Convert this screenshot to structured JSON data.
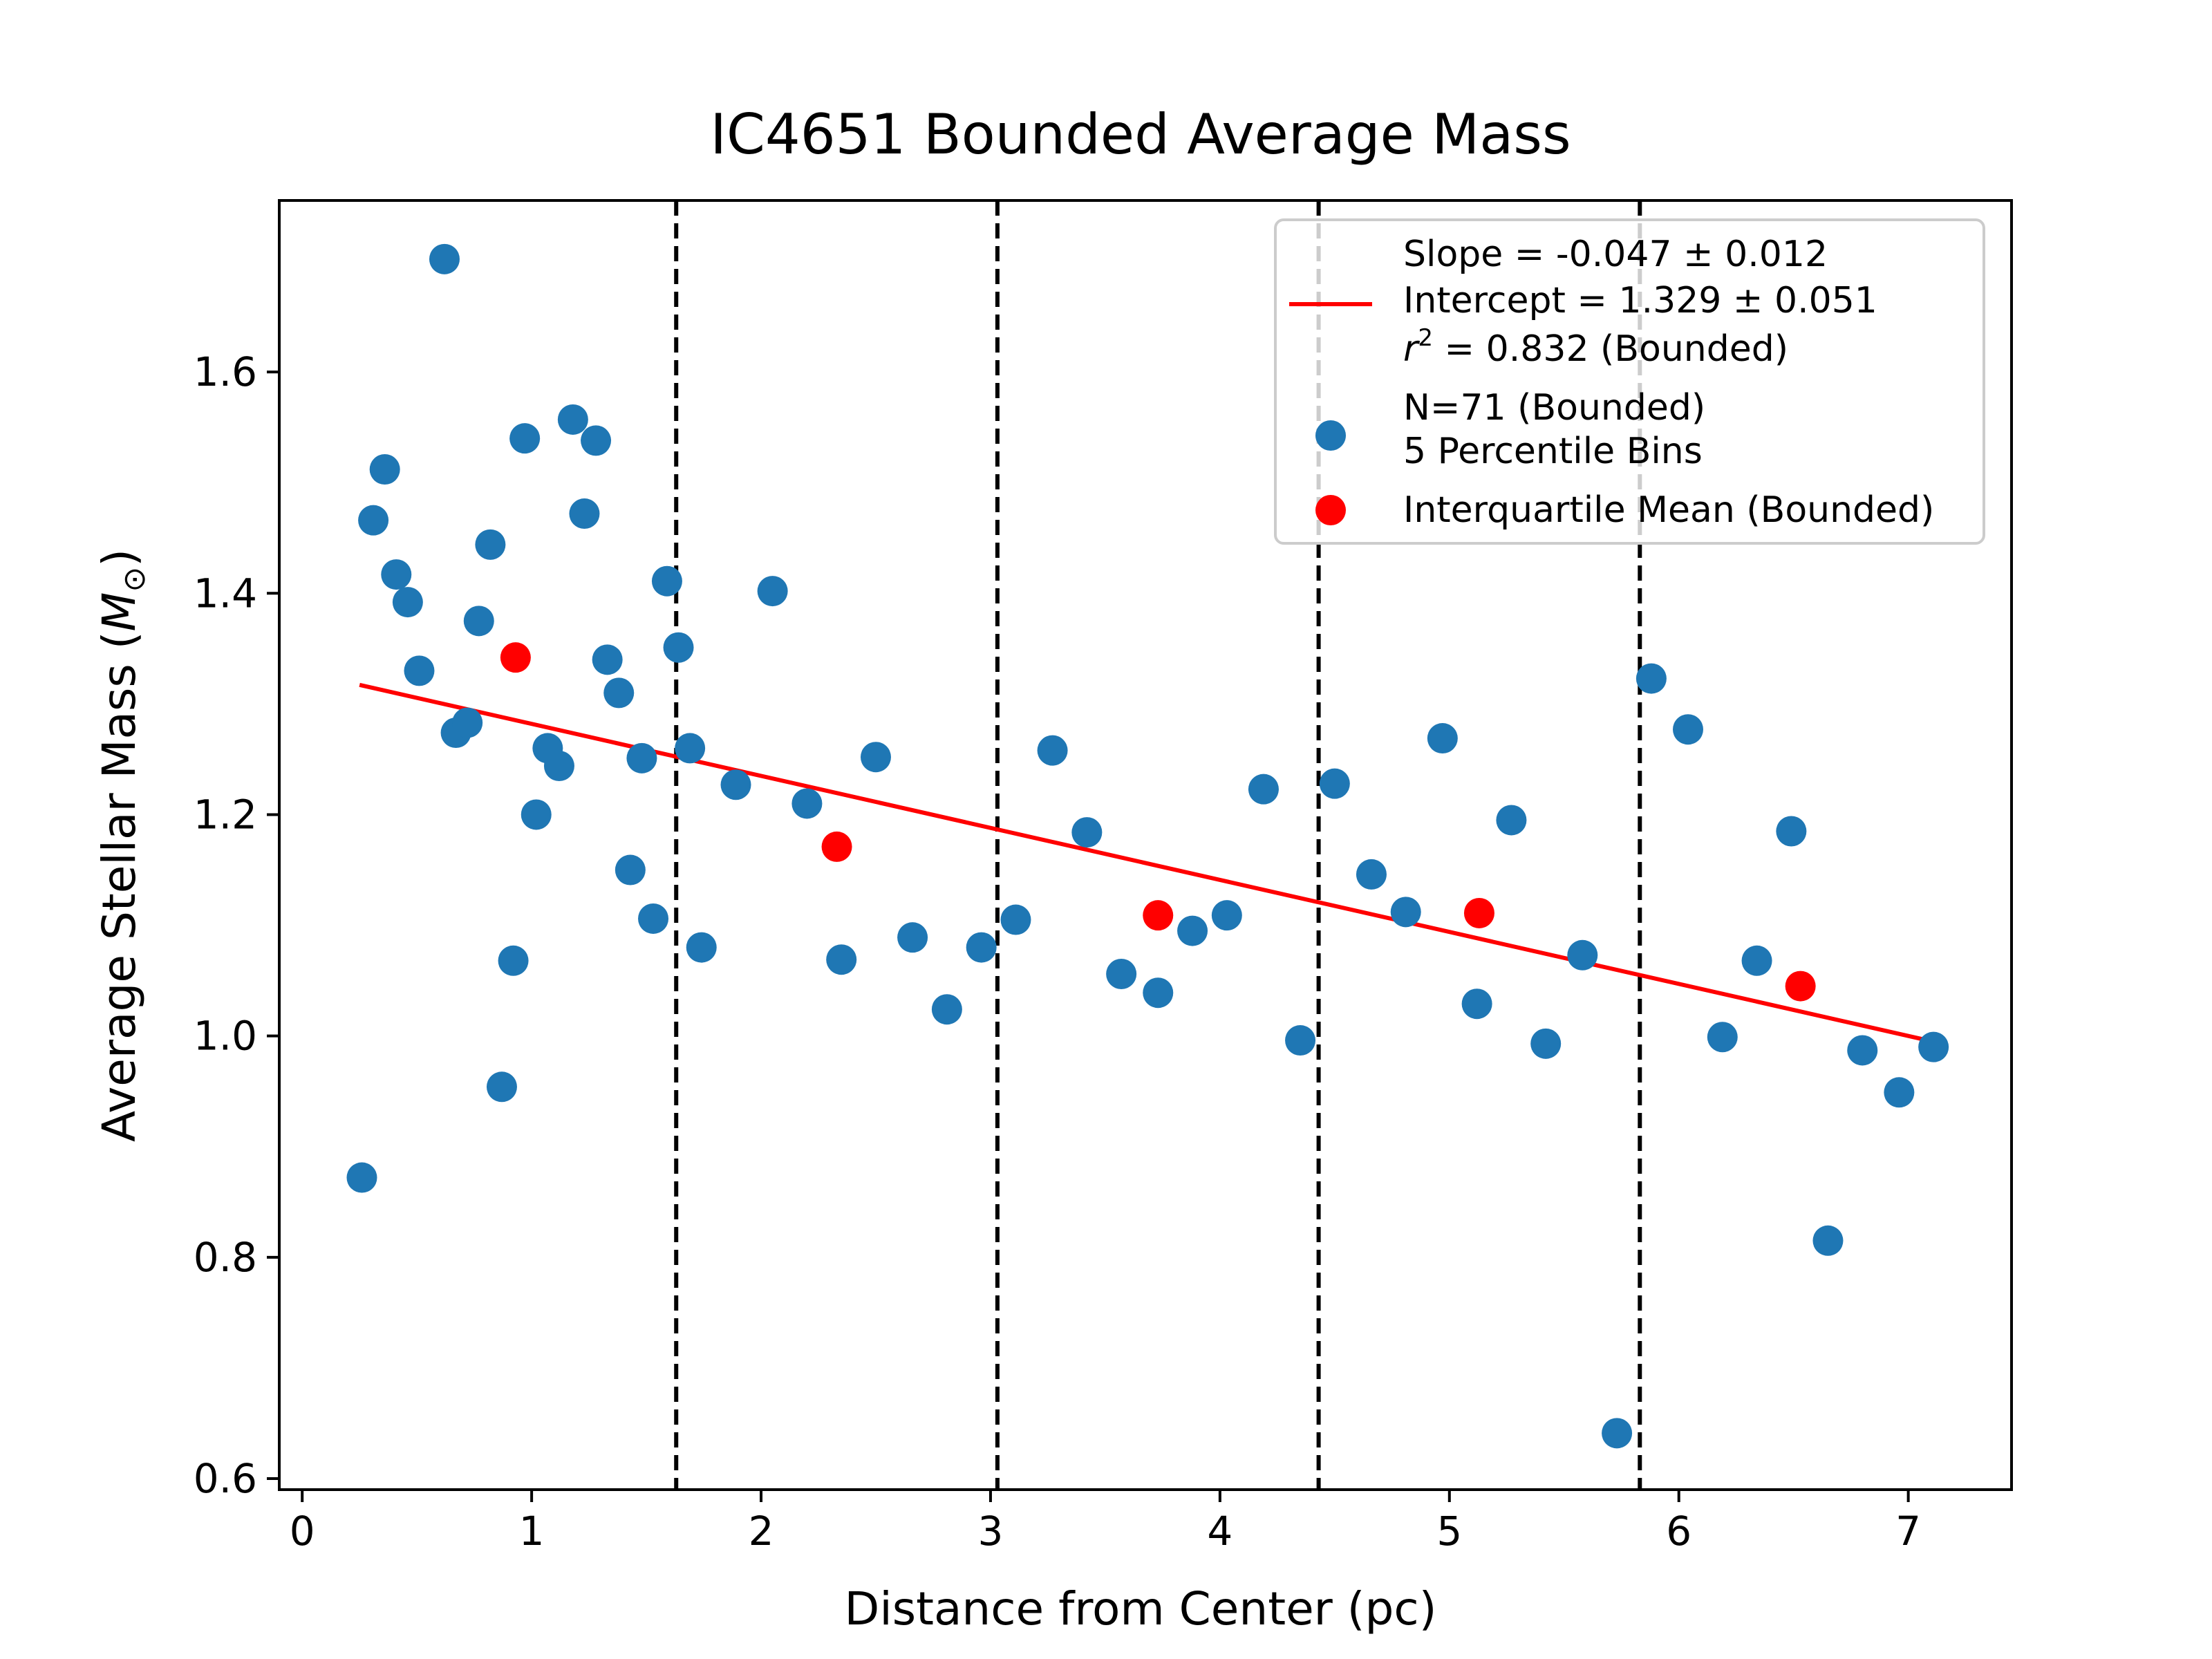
{
  "chart_data": {
    "type": "scatter",
    "title": "IC4651 Bounded Average Mass",
    "xlabel": "Distance from Center (pc)",
    "ylabel": "Average Stellar Mass (M⊙)",
    "xlim": [
      -0.1,
      7.45
    ],
    "ylim": [
      0.59,
      1.755
    ],
    "xticks": [
      "0",
      "1",
      "2",
      "3",
      "4",
      "5",
      "6",
      "7"
    ],
    "yticks": [
      "0.6",
      "0.8",
      "1.0",
      "1.2",
      "1.4",
      "1.6"
    ],
    "grid": false,
    "legend_position": "top-right",
    "bin_edges": [
      1.63,
      3.03,
      4.43,
      5.83
    ],
    "fit_line": {
      "name": "Slope = -0.047 ± 0.012\nIntercept = 1.329 ± 0.051\nr² = 0.832 (Bounded)",
      "slope": -0.047,
      "intercept": 1.329,
      "x_range": [
        0.25,
        7.1
      ],
      "color": "#ff0000"
    },
    "series": [
      {
        "name": "N=71 (Bounded)\n5 Percentile Bins",
        "color": "#1f77b4",
        "points": [
          [
            0.26,
            0.872
          ],
          [
            0.31,
            1.466
          ],
          [
            0.36,
            1.512
          ],
          [
            0.41,
            1.417
          ],
          [
            0.46,
            1.392
          ],
          [
            0.51,
            1.33
          ],
          [
            0.62,
            1.702
          ],
          [
            0.67,
            1.274
          ],
          [
            0.72,
            1.283
          ],
          [
            0.77,
            1.375
          ],
          [
            0.82,
            1.444
          ],
          [
            0.87,
            0.954
          ],
          [
            0.92,
            1.068
          ],
          [
            0.97,
            1.54
          ],
          [
            1.02,
            1.2
          ],
          [
            1.07,
            1.26
          ],
          [
            1.12,
            1.244
          ],
          [
            1.18,
            1.557
          ],
          [
            1.23,
            1.472
          ],
          [
            1.28,
            1.538
          ],
          [
            1.33,
            1.34
          ],
          [
            1.38,
            1.31
          ],
          [
            1.43,
            1.15
          ],
          [
            1.48,
            1.251
          ],
          [
            1.53,
            1.106
          ],
          [
            1.59,
            1.411
          ],
          [
            1.64,
            1.351
          ],
          [
            1.69,
            1.26
          ],
          [
            1.74,
            1.08
          ],
          [
            1.89,
            1.227
          ],
          [
            2.05,
            1.402
          ],
          [
            2.2,
            1.21
          ],
          [
            2.35,
            1.069
          ],
          [
            2.5,
            1.252
          ],
          [
            2.66,
            1.089
          ],
          [
            2.81,
            1.024
          ],
          [
            2.96,
            1.08
          ],
          [
            3.11,
            1.105
          ],
          [
            3.27,
            1.258
          ],
          [
            3.42,
            1.184
          ],
          [
            3.57,
            1.056
          ],
          [
            3.73,
            1.039
          ],
          [
            3.88,
            1.095
          ],
          [
            4.03,
            1.109
          ],
          [
            4.19,
            1.223
          ],
          [
            4.35,
            0.996
          ],
          [
            4.5,
            1.228
          ],
          [
            4.66,
            1.146
          ],
          [
            4.81,
            1.112
          ],
          [
            4.97,
            1.269
          ],
          [
            5.12,
            1.029
          ],
          [
            5.27,
            1.195
          ],
          [
            5.42,
            0.993
          ],
          [
            5.58,
            1.073
          ],
          [
            5.73,
            0.641
          ],
          [
            5.88,
            1.323
          ],
          [
            6.04,
            1.277
          ],
          [
            6.19,
            0.999
          ],
          [
            6.34,
            1.068
          ],
          [
            6.49,
            1.185
          ],
          [
            6.65,
            0.815
          ],
          [
            6.8,
            0.987
          ],
          [
            6.96,
            0.949
          ],
          [
            7.11,
            0.99
          ]
        ]
      },
      {
        "name": "Interquartile Mean (Bounded)",
        "color": "#ff0000",
        "points": [
          [
            0.93,
            1.342
          ],
          [
            2.33,
            1.171
          ],
          [
            3.73,
            1.109
          ],
          [
            5.13,
            1.111
          ],
          [
            6.53,
            1.045
          ]
        ]
      }
    ]
  },
  "legend": {
    "fit_line_1": "Slope = -0.047 ± 0.012",
    "fit_line_2": "Intercept = 1.329 ± 0.051",
    "fit_line_3_var": "r",
    "fit_line_3_sup": "2",
    "fit_line_3_rest": " = 0.832 (Bounded)",
    "scatter_line_1": "N=71 (Bounded)",
    "scatter_line_2": "5 Percentile Bins",
    "iqm_label": "Interquartile Mean (Bounded)"
  },
  "ylabel_parts": {
    "main": "Average Stellar Mass (",
    "var": "M",
    "sub": "⊙",
    "close": ")"
  }
}
